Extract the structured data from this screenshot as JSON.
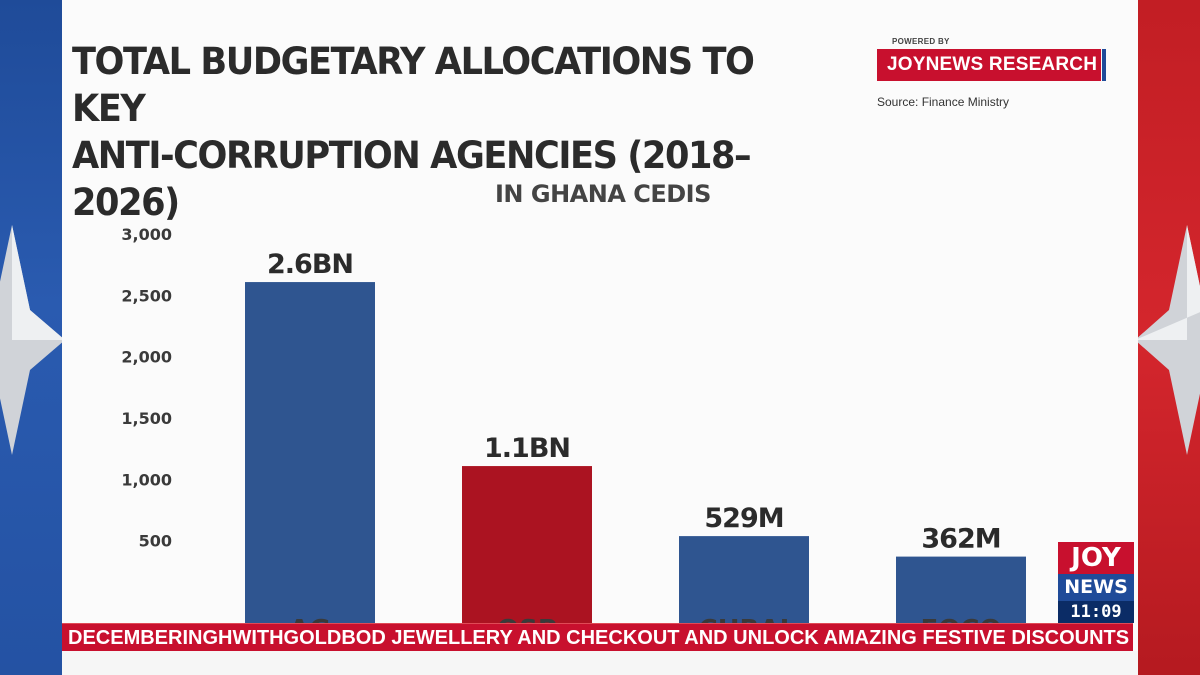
{
  "header": {
    "title_line1": "TOTAL BUDGETARY ALLOCATIONS TO KEY",
    "title_line2": "ANTI-CORRUPTION AGENCIES (2018–2026)",
    "powered_by": "POWERED BY",
    "research_label": "JOYNEWS RESEARCH",
    "source": "Source: Finance Ministry"
  },
  "chart_data": {
    "type": "bar",
    "title": "TOTAL BUDGETARY ALLOCATIONS TO KEY ANTI-CORRUPTION AGENCIES (2018–2026)",
    "subtitle": "IN GHANA CEDIS",
    "xlabel": "",
    "ylabel": "",
    "unit": "million GHS",
    "categories": [
      "AG",
      "OSP",
      "CHRAJ",
      "EOCO"
    ],
    "values": [
      2600,
      1100,
      529,
      362
    ],
    "data_labels": [
      "2.6BN",
      "1.1BN",
      "529M",
      "362M"
    ],
    "bar_colors": [
      "#2f5590",
      "#ab1321",
      "#2f5590",
      "#2f5590"
    ],
    "yticks": [
      "3,000",
      "2,500",
      "2,000",
      "1,500",
      "1,000",
      "500"
    ],
    "ytick_values": [
      3000,
      2500,
      2000,
      1500,
      1000,
      500
    ],
    "ylim": [
      0,
      3000
    ],
    "grid": false
  },
  "logo": {
    "joy": "JOY",
    "news": "NEWS",
    "time": "11:09"
  },
  "ticker": {
    "text": "DECEMBERINGHWITHGOLDBOD JEWELLERY AND CHECKOUT AND UNLOCK AMAZING FESTIVE DISCOUNTS ON"
  },
  "colors": {
    "accent_red": "#c8102e",
    "accent_blue": "#1f4b99",
    "bar_blue": "#2f5590",
    "bar_red": "#ab1321"
  }
}
